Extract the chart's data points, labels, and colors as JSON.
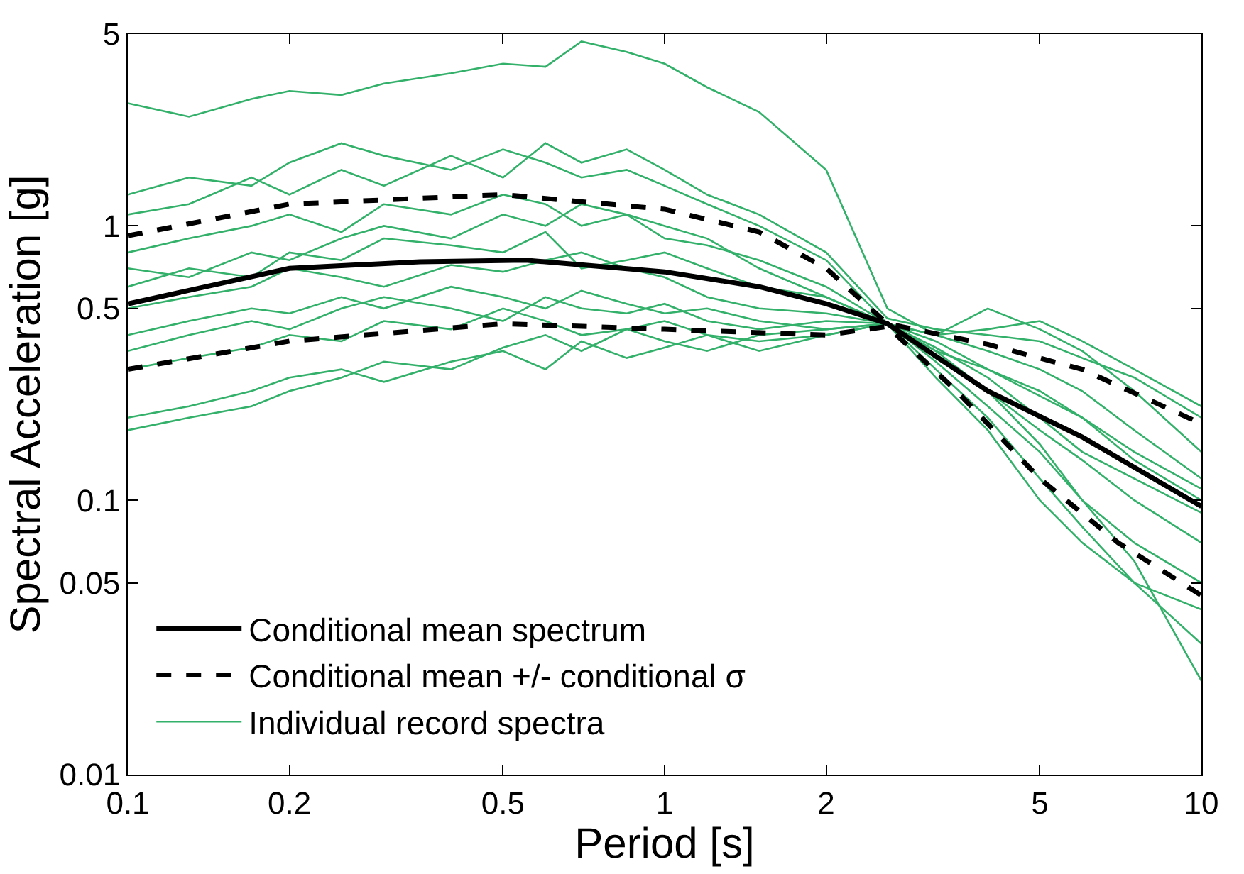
{
  "chart_data": {
    "type": "line",
    "xlabel": "Period [s]",
    "ylabel": "Spectral Acceleration [g]",
    "log": "xy",
    "grid": false,
    "legend": "bottom left",
    "marker": "none",
    "xlim": [
      0.1,
      10
    ],
    "xticks": [
      0.1,
      0.2,
      0.5,
      1,
      2,
      5,
      10
    ],
    "ylim": [
      0.01,
      5
    ],
    "yticks": [
      0.01,
      0.05,
      0.1,
      0.5,
      1,
      5
    ],
    "x": [
      0.1,
      0.13,
      0.17,
      0.2,
      0.25,
      0.3,
      0.4,
      0.5,
      0.6,
      0.7,
      0.85,
      1,
      1.2,
      1.5,
      2,
      2.6,
      3.2,
      4,
      5,
      6,
      7.5,
      10
    ],
    "series": [
      {
        "name": "Conditional mean spectrum",
        "color": "#000000",
        "line_style": "solid",
        "x": [
          0.1,
          0.2,
          0.35,
          0.55,
          1,
          1.5,
          2,
          2.6,
          4,
          6,
          10
        ],
        "values": [
          0.52,
          0.7,
          0.74,
          0.75,
          0.68,
          0.6,
          0.52,
          0.44,
          0.25,
          0.17,
          0.095
        ]
      },
      {
        "name": "Conditional mean +/- conditional σ",
        "color": "#000000",
        "line_style": "dashed",
        "x": [
          0.1,
          0.2,
          0.5,
          1,
          1.5,
          2,
          2.6,
          4,
          6,
          10
        ],
        "values": [
          0.92,
          1.2,
          1.3,
          1.15,
          0.95,
          0.7,
          0.44,
          0.37,
          0.3,
          0.19
        ]
      },
      {
        "color": "#000000",
        "line_style": "dashed",
        "x": [
          0.1,
          0.2,
          0.5,
          1,
          2,
          2.6,
          3.5,
          5,
          7,
          10
        ],
        "values": [
          0.3,
          0.38,
          0.44,
          0.42,
          0.4,
          0.43,
          0.25,
          0.12,
          0.07,
          0.045
        ]
      },
      {
        "name": "Individual record spectra",
        "color": "#33b06a",
        "line_style": "solid",
        "values": [
          2.8,
          2.5,
          2.9,
          3.1,
          3.0,
          3.3,
          3.6,
          3.9,
          3.8,
          4.7,
          4.3,
          3.9,
          3.2,
          2.6,
          1.6,
          0.5,
          0.4,
          0.35,
          0.3,
          0.25,
          0.18,
          0.12
        ]
      },
      {
        "color": "#33b06a",
        "line_style": "solid",
        "values": [
          1.1,
          1.2,
          1.5,
          1.3,
          1.6,
          1.4,
          1.8,
          1.5,
          2.0,
          1.7,
          1.9,
          1.6,
          1.3,
          1.1,
          0.8,
          0.46,
          0.42,
          0.4,
          0.38,
          0.33,
          0.28,
          0.2
        ]
      },
      {
        "color": "#33b06a",
        "line_style": "solid",
        "values": [
          0.2,
          0.22,
          0.25,
          0.28,
          0.3,
          0.27,
          0.32,
          0.35,
          0.3,
          0.38,
          0.33,
          0.36,
          0.4,
          0.35,
          0.4,
          0.44,
          0.3,
          0.2,
          0.12,
          0.08,
          0.05,
          0.03
        ]
      },
      {
        "color": "#33b06a",
        "line_style": "solid",
        "values": [
          0.6,
          0.7,
          0.65,
          0.8,
          0.75,
          0.9,
          0.85,
          0.8,
          0.95,
          0.7,
          0.75,
          0.8,
          0.7,
          0.6,
          0.55,
          0.44,
          0.33,
          0.25,
          0.18,
          0.14,
          0.1,
          0.07
        ]
      },
      {
        "color": "#33b06a",
        "line_style": "solid",
        "values": [
          0.4,
          0.45,
          0.5,
          0.48,
          0.55,
          0.5,
          0.6,
          0.55,
          0.5,
          0.58,
          0.52,
          0.48,
          0.5,
          0.45,
          0.42,
          0.44,
          0.38,
          0.3,
          0.24,
          0.2,
          0.15,
          0.11
        ]
      },
      {
        "color": "#33b06a",
        "line_style": "solid",
        "values": [
          0.8,
          0.9,
          1.0,
          1.1,
          0.95,
          1.2,
          1.1,
          1.3,
          1.2,
          1.0,
          1.1,
          0.9,
          0.85,
          0.75,
          0.6,
          0.44,
          0.4,
          0.42,
          0.45,
          0.38,
          0.3,
          0.22
        ]
      },
      {
        "color": "#33b06a",
        "line_style": "solid",
        "values": [
          0.3,
          0.33,
          0.36,
          0.4,
          0.38,
          0.45,
          0.42,
          0.5,
          0.45,
          0.4,
          0.42,
          0.38,
          0.35,
          0.4,
          0.42,
          0.44,
          0.28,
          0.18,
          0.1,
          0.07,
          0.05,
          0.04
        ]
      },
      {
        "color": "#33b06a",
        "line_style": "solid",
        "values": [
          0.5,
          0.55,
          0.6,
          0.7,
          0.65,
          0.6,
          0.72,
          0.68,
          0.75,
          0.8,
          0.7,
          0.65,
          0.55,
          0.5,
          0.48,
          0.44,
          0.36,
          0.28,
          0.2,
          0.15,
          0.12,
          0.09
        ]
      },
      {
        "color": "#33b06a",
        "line_style": "solid",
        "values": [
          0.18,
          0.2,
          0.22,
          0.25,
          0.28,
          0.32,
          0.3,
          0.36,
          0.4,
          0.35,
          0.42,
          0.45,
          0.4,
          0.38,
          0.4,
          0.44,
          0.35,
          0.25,
          0.16,
          0.1,
          0.06,
          0.022
        ]
      },
      {
        "color": "#33b06a",
        "line_style": "solid",
        "values": [
          1.3,
          1.5,
          1.4,
          1.7,
          2.0,
          1.8,
          1.6,
          1.9,
          1.7,
          1.5,
          1.6,
          1.4,
          1.2,
          1.0,
          0.75,
          0.44,
          0.4,
          0.5,
          0.42,
          0.35,
          0.25,
          0.15
        ]
      },
      {
        "color": "#33b06a",
        "line_style": "solid",
        "values": [
          0.7,
          0.65,
          0.8,
          0.75,
          0.9,
          1.0,
          0.9,
          1.1,
          1.0,
          1.2,
          1.1,
          1.0,
          0.9,
          0.7,
          0.55,
          0.44,
          0.35,
          0.3,
          0.25,
          0.2,
          0.14,
          0.1
        ]
      },
      {
        "color": "#33b06a",
        "line_style": "solid",
        "values": [
          0.35,
          0.4,
          0.45,
          0.42,
          0.5,
          0.55,
          0.5,
          0.45,
          0.55,
          0.5,
          0.48,
          0.52,
          0.45,
          0.42,
          0.45,
          0.44,
          0.32,
          0.22,
          0.15,
          0.1,
          0.07,
          0.05
        ]
      }
    ]
  }
}
